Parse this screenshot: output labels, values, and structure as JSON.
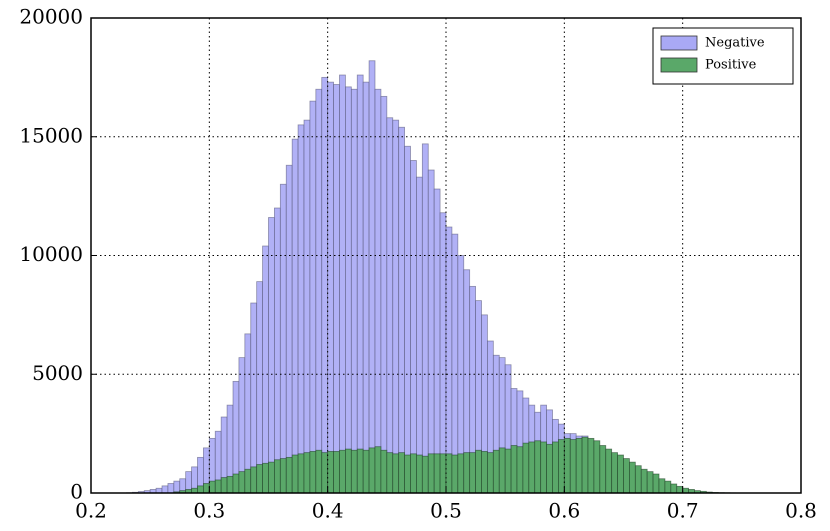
{
  "chart_data": {
    "type": "histogram",
    "bins": [
      0.2,
      0.205,
      0.21,
      0.215,
      0.22,
      0.225,
      0.23,
      0.235,
      0.24,
      0.245,
      0.25,
      0.255,
      0.26,
      0.265,
      0.27,
      0.275,
      0.28,
      0.285,
      0.29,
      0.295,
      0.3,
      0.305,
      0.31,
      0.315,
      0.32,
      0.325,
      0.33,
      0.335,
      0.34,
      0.345,
      0.35,
      0.355,
      0.36,
      0.365,
      0.37,
      0.375,
      0.38,
      0.385,
      0.39,
      0.395,
      0.4,
      0.405,
      0.41,
      0.415,
      0.42,
      0.425,
      0.43,
      0.435,
      0.44,
      0.445,
      0.45,
      0.455,
      0.46,
      0.465,
      0.47,
      0.475,
      0.48,
      0.485,
      0.49,
      0.495,
      0.5,
      0.505,
      0.51,
      0.515,
      0.52,
      0.525,
      0.53,
      0.535,
      0.54,
      0.545,
      0.55,
      0.555,
      0.56,
      0.565,
      0.57,
      0.575,
      0.58,
      0.585,
      0.59,
      0.595,
      0.6,
      0.605,
      0.61,
      0.615,
      0.62,
      0.625,
      0.63,
      0.635,
      0.64,
      0.645,
      0.65,
      0.655,
      0.66,
      0.665,
      0.67,
      0.675,
      0.68,
      0.685,
      0.69,
      0.695,
      0.7,
      0.705,
      0.71,
      0.715,
      0.72,
      0.725,
      0.73,
      0.735,
      0.74,
      0.745,
      0.75,
      0.755,
      0.76,
      0.765,
      0.77,
      0.775,
      0.78,
      0.785,
      0.79,
      0.795,
      0.8
    ],
    "series": [
      {
        "name": "Negative",
        "color": "#a9a9f5",
        "values": [
          0,
          0,
          0,
          0,
          0,
          0,
          10,
          30,
          60,
          100,
          150,
          200,
          300,
          400,
          500,
          600,
          900,
          1100,
          1500,
          1900,
          2300,
          2600,
          3200,
          3700,
          4700,
          5700,
          6700,
          8000,
          8900,
          10400,
          11600,
          12000,
          13000,
          13800,
          14900,
          15500,
          15700,
          16500,
          17000,
          17500,
          17300,
          17200,
          17600,
          17100,
          17000,
          17600,
          17300,
          18200,
          17000,
          16700,
          15800,
          15700,
          15400,
          14600,
          14000,
          13300,
          14700,
          13600,
          12800,
          11800,
          11200,
          10900,
          10000,
          9400,
          8700,
          8100,
          7500,
          6400,
          5800,
          5700,
          5400,
          4400,
          4300,
          4000,
          3700,
          3400,
          3700,
          3500,
          3100,
          2900,
          2500,
          2500,
          2400,
          2400,
          2200,
          1900,
          1700,
          1500,
          1300,
          1100,
          950,
          800,
          650,
          500,
          400,
          300,
          220,
          150,
          100,
          60,
          40,
          25,
          15,
          10,
          5,
          0,
          0,
          0,
          0,
          0,
          0,
          0,
          0,
          0,
          0,
          0,
          0,
          0,
          0,
          0
        ]
      },
      {
        "name": "Positive",
        "color": "#5aa869",
        "values": [
          0,
          0,
          0,
          0,
          0,
          0,
          0,
          0,
          0,
          0,
          0,
          0,
          0,
          0,
          50,
          100,
          150,
          200,
          300,
          400,
          500,
          550,
          650,
          700,
          800,
          900,
          1000,
          1100,
          1200,
          1250,
          1300,
          1400,
          1450,
          1500,
          1600,
          1650,
          1700,
          1750,
          1800,
          1700,
          1750,
          1750,
          1800,
          1850,
          1800,
          1850,
          1800,
          1900,
          1950,
          1800,
          1700,
          1650,
          1700,
          1600,
          1650,
          1600,
          1550,
          1650,
          1650,
          1650,
          1650,
          1600,
          1650,
          1700,
          1700,
          1800,
          1750,
          1700,
          1800,
          1900,
          1850,
          2000,
          1950,
          2100,
          2150,
          2200,
          2150,
          2050,
          2150,
          2250,
          2300,
          2250,
          2300,
          2350,
          2300,
          2200,
          2000,
          1850,
          1700,
          1600,
          1450,
          1300,
          1150,
          1000,
          900,
          800,
          600,
          500,
          380,
          280,
          200,
          150,
          100,
          70,
          40,
          25,
          15,
          10,
          5,
          0,
          0,
          0,
          0,
          0,
          0,
          0,
          0,
          0,
          0,
          0
        ]
      }
    ],
    "xlim": [
      0.2,
      0.8
    ],
    "ylim": [
      0,
      20000
    ],
    "xticks": [
      0.2,
      0.3,
      0.4,
      0.5,
      0.6,
      0.7,
      0.8
    ],
    "yticks": [
      0,
      5000,
      10000,
      15000,
      20000
    ],
    "grid": true,
    "legend": "upper right"
  }
}
